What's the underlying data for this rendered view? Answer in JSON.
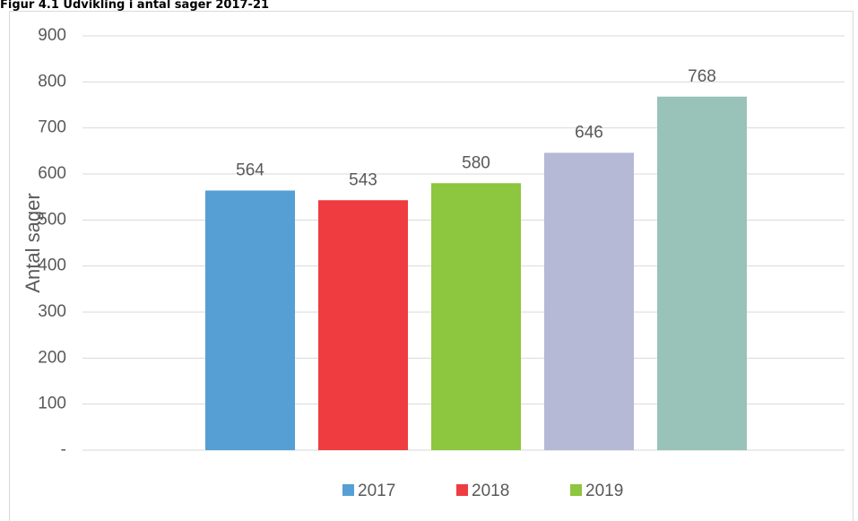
{
  "chart_data": {
    "type": "bar",
    "title": "Figur 4.1 Udvikling i antal sager 2017-21",
    "ylabel": "Antal sager",
    "series": [
      {
        "name": "2017",
        "color": "#559fd4",
        "values": [
          564
        ]
      },
      {
        "name": "2018",
        "color": "#ee3c41",
        "values": [
          543
        ]
      },
      {
        "name": "2019",
        "color": "#8dc63f",
        "values": [
          580
        ]
      },
      {
        "name": null,
        "color": "#b5b9d6",
        "values": [
          646
        ]
      },
      {
        "name": null,
        "color": "#99c2b8",
        "values": [
          768
        ]
      }
    ],
    "ylim": [
      0,
      900
    ],
    "yticks": [
      {
        "value": 0,
        "label": "-"
      },
      100,
      200,
      300,
      400,
      500,
      600,
      700,
      800,
      900
    ],
    "grid": true,
    "legend": "bottom"
  }
}
